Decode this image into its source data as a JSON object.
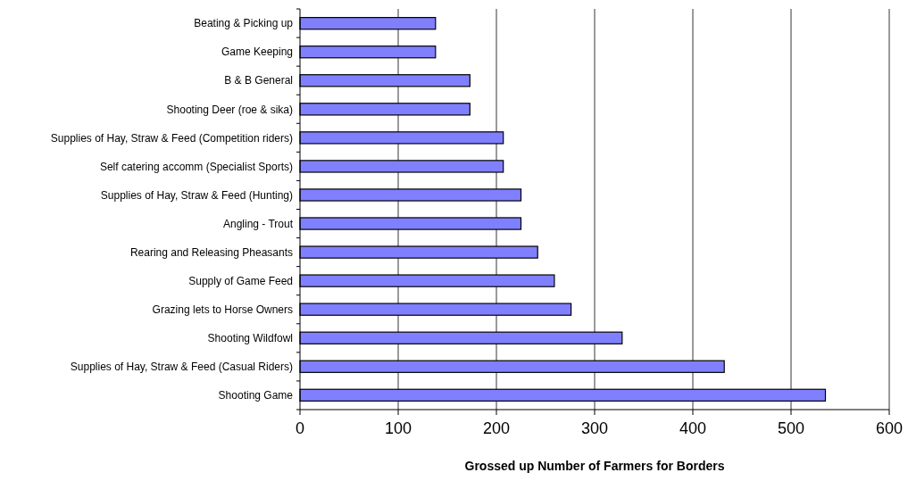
{
  "chart_data": {
    "type": "bar",
    "orientation": "horizontal",
    "xlabel": "Grossed up Number of Farmers for Borders",
    "categories": [
      "Beating & Picking up",
      "Game Keeping ",
      "B & B  General",
      "Shooting Deer (roe & sika)",
      "Supplies of Hay, Straw & Feed (Competition riders)",
      "Self catering accomm (Specialist Sports)",
      "Supplies of Hay, Straw & Feed (Hunting)",
      "Angling - Trout",
      "Rearing and Releasing Pheasants",
      "Supply of Game Feed",
      "Grazing lets to Horse Owners",
      "Shooting Wildfowl",
      "Supplies of Hay, Straw & Feed (Casual Riders)",
      "Shooting Game"
    ],
    "values": [
      138,
      138,
      173,
      173,
      207,
      207,
      225,
      225,
      242,
      259,
      276,
      328,
      432,
      535
    ],
    "color": "#8080ff",
    "xlim": [
      0,
      600
    ],
    "xticks": [
      0,
      100,
      200,
      300,
      400,
      500,
      600
    ],
    "grid": "x"
  }
}
